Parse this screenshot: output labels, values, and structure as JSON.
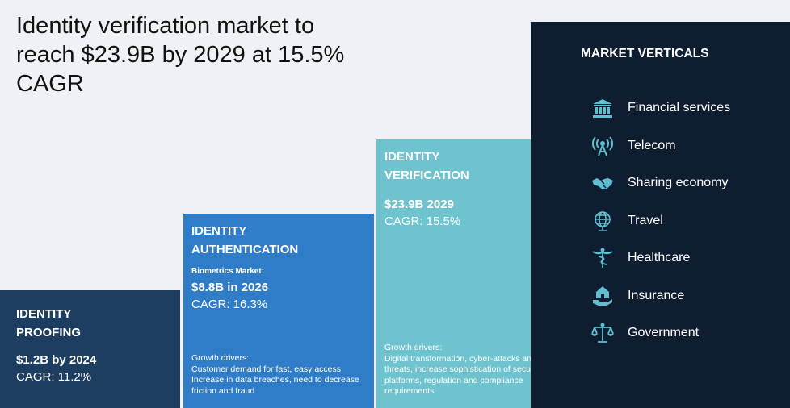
{
  "title": "Identity verification market to reach $23.9B by 2029 at 15.5% CAGR",
  "colors": {
    "proofing": "#1d3e61",
    "authentication": "#2f7dc8",
    "verification": "#6fc3ce",
    "market": "#0f1d30",
    "icon": "#5fbfd0"
  },
  "proofing": {
    "heading_line1": "IDENTITY",
    "heading_line2": "PROOFING",
    "value": "$1.2B by 2024",
    "cagr": "CAGR: 11.2%"
  },
  "authentication": {
    "heading_line1": "IDENTITY",
    "heading_line2": "AUTHENTICATION",
    "label": "Biometrics Market:",
    "value": "$8.8B in 2026",
    "cagr": "CAGR: 16.3%",
    "drivers_title": "Growth drivers:",
    "drivers_text": "Customer demand for fast, easy access. Increase in data breaches, need to decrease friction and fraud"
  },
  "verification": {
    "heading_line1": "IDENTITY",
    "heading_line2": "VERIFICATION",
    "value": "$23.9B 2029",
    "cagr": "CAGR: 15.5%",
    "drivers_title": "Growth drivers:",
    "drivers_text": "Digital transformation, cyber-attacks and identity threats, increase sophistication of security platforms, regulation and compliance requirements"
  },
  "market": {
    "title": "MARKET VERTICALS",
    "items": [
      {
        "label": "Financial services",
        "icon": "bank-icon"
      },
      {
        "label": "Telecom",
        "icon": "antenna-icon"
      },
      {
        "label": "Sharing economy",
        "icon": "handshake-icon"
      },
      {
        "label": "Travel",
        "icon": "globe-icon"
      },
      {
        "label": "Healthcare",
        "icon": "caduceus-icon"
      },
      {
        "label": "Insurance",
        "icon": "house-hand-icon"
      },
      {
        "label": "Government",
        "icon": "scales-icon"
      }
    ]
  }
}
